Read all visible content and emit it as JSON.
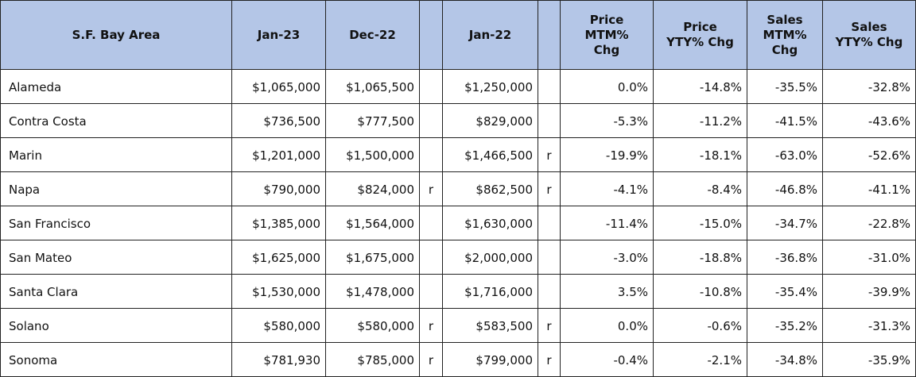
{
  "table": {
    "header": [
      "S.F. Bay Area",
      "Jan-23",
      "Dec-22",
      null,
      "Jan-22",
      null,
      "Price MTM% Chg",
      "Price YTY% Chg",
      "Sales MTM% Chg",
      "Sales YTY% Chg"
    ],
    "rows": [
      [
        "Alameda",
        "$1,065,000",
        "$1,065,500",
        null,
        "$1,250,000",
        null,
        "0.0%",
        "-14.8%",
        "-35.5%",
        "-32.8%"
      ],
      [
        "Contra Costa",
        "$736,500",
        "$777,500",
        null,
        "$829,000",
        null,
        "-5.3%",
        "-11.2%",
        "-41.5%",
        "-43.6%"
      ],
      [
        "Marin",
        "$1,201,000",
        "$1,500,000",
        null,
        "$1,466,500",
        "r",
        "-19.9%",
        "-18.1%",
        "-63.0%",
        "-52.6%"
      ],
      [
        "Napa",
        "$790,000",
        "$824,000",
        "r",
        "$862,500",
        "r",
        "-4.1%",
        "-8.4%",
        "-46.8%",
        "-41.1%"
      ],
      [
        "San Francisco",
        "$1,385,000",
        "$1,564,000",
        null,
        "$1,630,000",
        null,
        "-11.4%",
        "-15.0%",
        "-34.7%",
        "-22.8%"
      ],
      [
        "San Mateo",
        "$1,625,000",
        "$1,675,000",
        null,
        "$2,000,000",
        null,
        "-3.0%",
        "-18.8%",
        "-36.8%",
        "-31.0%"
      ],
      [
        "Santa Clara",
        "$1,530,000",
        "$1,478,000",
        null,
        "$1,716,000",
        null,
        "3.5%",
        "-10.8%",
        "-35.4%",
        "-39.9%"
      ],
      [
        "Solano",
        "$580,000",
        "$580,000",
        "r",
        "$583,500",
        "r",
        "0.0%",
        "-0.6%",
        "-35.2%",
        "-31.3%"
      ],
      [
        "Sonoma",
        "$781,930",
        "$785,000",
        "r",
        "$799,000",
        "r",
        "-0.4%",
        "-2.1%",
        "-34.8%",
        "-35.9%"
      ]
    ]
  }
}
